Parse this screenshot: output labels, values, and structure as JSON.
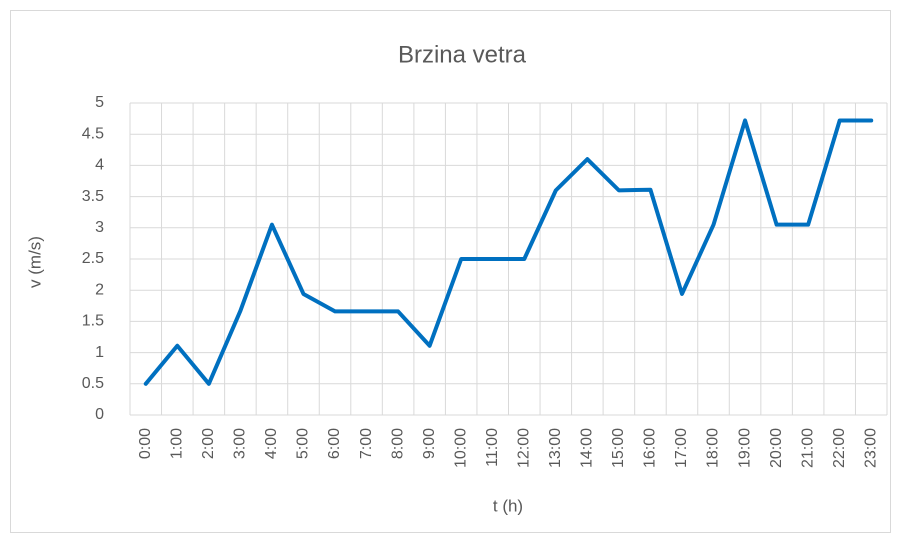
{
  "chart_data": {
    "type": "line",
    "title": "Brzina vetra",
    "x_label": "t (h)",
    "y_label": "v (m/s)",
    "categories": [
      "0:00",
      "1:00",
      "2:00",
      "3:00",
      "4:00",
      "5:00",
      "6:00",
      "7:00",
      "8:00",
      "9:00",
      "10:00",
      "11:00",
      "12:00",
      "13:00",
      "14:00",
      "15:00",
      "16:00",
      "17:00",
      "18:00",
      "19:00",
      "20:00",
      "21:00",
      "22:00",
      "23:00"
    ],
    "series": [
      {
        "name": "v (m/s)",
        "color": "#0070c0",
        "values": [
          0.5,
          1.11,
          0.5,
          1.67,
          3.05,
          1.94,
          1.66,
          1.66,
          1.66,
          1.11,
          2.5,
          2.5,
          2.5,
          3.6,
          4.1,
          3.6,
          3.61,
          1.94,
          3.05,
          4.72,
          3.05,
          3.05,
          4.72,
          4.72
        ]
      }
    ],
    "ylim": [
      0,
      5
    ],
    "yticks": [
      0,
      0.5,
      1,
      1.5,
      2,
      2.5,
      3,
      3.5,
      4,
      4.5,
      5
    ],
    "grid": true
  }
}
